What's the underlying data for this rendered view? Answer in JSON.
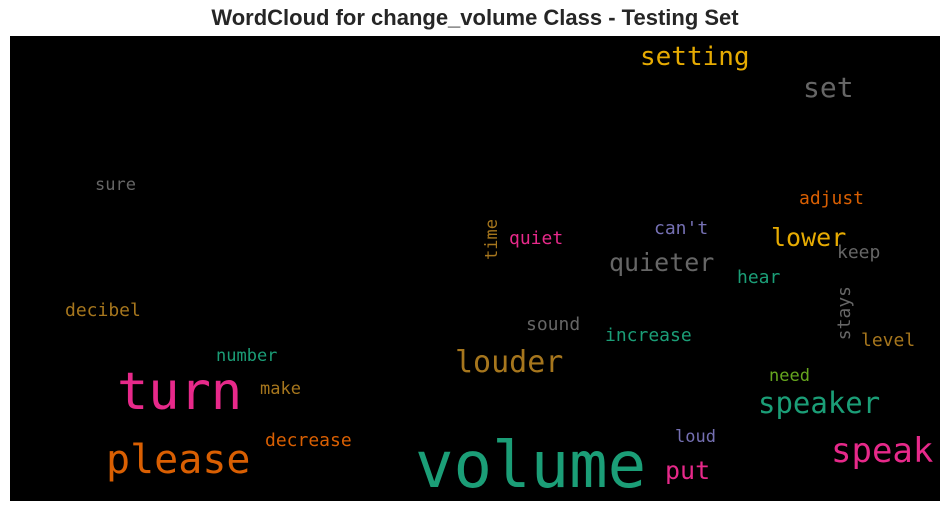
{
  "chart_data": {
    "type": "wordcloud",
    "title": "WordCloud for change_volume Class - Testing Set",
    "background": "#000000",
    "words": [
      {
        "text": "volume",
        "color": "#1b9e77"
      },
      {
        "text": "turn",
        "color": "#e7298a"
      },
      {
        "text": "please",
        "color": "#d95f02"
      },
      {
        "text": "speak",
        "color": "#e7298a"
      },
      {
        "text": "louder",
        "color": "#a6761d"
      },
      {
        "text": "speaker",
        "color": "#1b9e77"
      },
      {
        "text": "setting",
        "color": "#e6ab02"
      },
      {
        "text": "set",
        "color": "#666666"
      },
      {
        "text": "put",
        "color": "#e7298a"
      },
      {
        "text": "quieter",
        "color": "#666666"
      },
      {
        "text": "lower",
        "color": "#e6ab02"
      },
      {
        "text": "adjust",
        "color": "#d95f02"
      },
      {
        "text": "decrease",
        "color": "#d95f02"
      },
      {
        "text": "increase",
        "color": "#1b9e77"
      },
      {
        "text": "decibel",
        "color": "#a6761d"
      },
      {
        "text": "quiet",
        "color": "#e7298a"
      },
      {
        "text": "can't",
        "color": "#7570b3"
      },
      {
        "text": "sure",
        "color": "#666666"
      },
      {
        "text": "time",
        "color": "#a6761d",
        "orientation": "vertical"
      },
      {
        "text": "keep",
        "color": "#666666"
      },
      {
        "text": "hear",
        "color": "#1b9e77"
      },
      {
        "text": "sound",
        "color": "#666666"
      },
      {
        "text": "stays",
        "color": "#666666",
        "orientation": "vertical"
      },
      {
        "text": "level",
        "color": "#a6761d"
      },
      {
        "text": "number",
        "color": "#1b9e77"
      },
      {
        "text": "make",
        "color": "#a6761d"
      },
      {
        "text": "need",
        "color": "#66a61e"
      },
      {
        "text": "loud",
        "color": "#7570b3"
      }
    ]
  }
}
